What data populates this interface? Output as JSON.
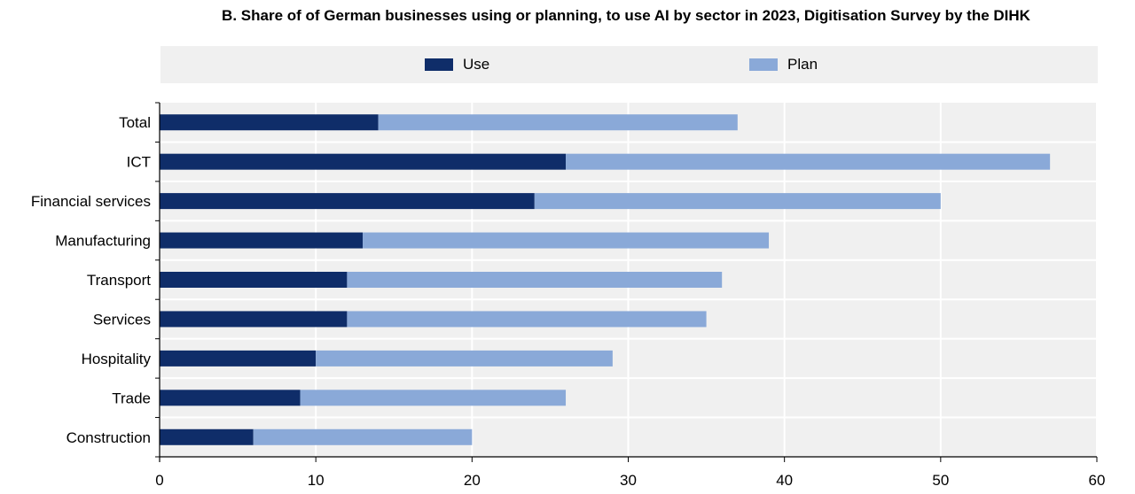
{
  "chart_data": {
    "type": "bar",
    "orientation": "horizontal",
    "stacked": true,
    "title": "B. Share of of German businesses using or planning, to use AI by sector in 2023, Digitisation Survey by the DIHK",
    "categories": [
      "Total",
      "ICT",
      "Financial services",
      "Manufacturing",
      "Transport",
      "Services",
      "Hospitality",
      "Trade",
      "Construction"
    ],
    "series": [
      {
        "name": "Use",
        "color": "#0f2d69",
        "values": [
          14,
          26,
          24,
          13,
          12,
          12,
          10,
          9,
          6
        ]
      },
      {
        "name": "Plan",
        "color": "#8aa9d8",
        "values": [
          23,
          31,
          26,
          26,
          24,
          23,
          19,
          17,
          14
        ]
      }
    ],
    "xlim": [
      0,
      60
    ],
    "xticks": [
      0,
      10,
      20,
      30,
      40,
      50,
      60
    ],
    "grid": true,
    "legend_position": "top"
  }
}
